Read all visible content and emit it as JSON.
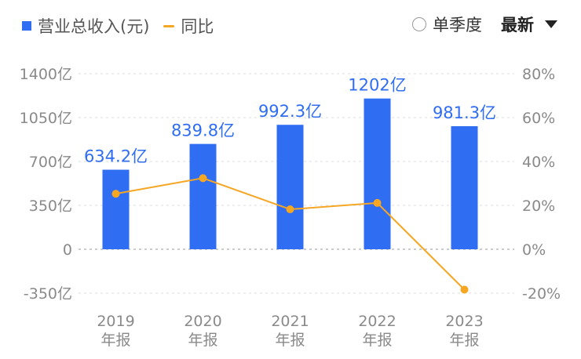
{
  "legend": {
    "bar_label": "营业总收入(元)",
    "line_label": "同比"
  },
  "controls": {
    "quarter_label": "单季度",
    "period_label": "最新"
  },
  "colors": {
    "bar": "#2f6df3",
    "line": "#f5a623",
    "grid": "#dcdcdc"
  },
  "chart_data": {
    "type": "bar",
    "categories": [
      "2019\n年报",
      "2020\n年报",
      "2021\n年报",
      "2022\n年报",
      "2023\n年报"
    ],
    "series": [
      {
        "name": "营业总收入(元)",
        "type": "bar",
        "axis": "left",
        "values": [
          634.2,
          839.8,
          992.3,
          1202,
          981.3
        ],
        "labels": [
          "634.2亿",
          "839.8亿",
          "992.3亿",
          "1202亿",
          "981.3亿"
        ]
      },
      {
        "name": "同比",
        "type": "line",
        "axis": "right",
        "values": [
          25.3,
          32.4,
          18.2,
          21.1,
          -18.4
        ]
      }
    ],
    "y_left": {
      "ylim": [
        -350,
        1400
      ],
      "ticks": [
        -350,
        0,
        350,
        700,
        1050,
        1400
      ],
      "tick_labels": [
        "-350亿",
        "0",
        "350亿",
        "700亿",
        "1050亿",
        "1400亿"
      ]
    },
    "y_right": {
      "ylim": [
        -20,
        80
      ],
      "ticks": [
        -20,
        0,
        20,
        40,
        60,
        80
      ],
      "tick_labels": [
        "-20%",
        "0%",
        "20%",
        "40%",
        "60%",
        "80%"
      ]
    },
    "grid": true
  }
}
